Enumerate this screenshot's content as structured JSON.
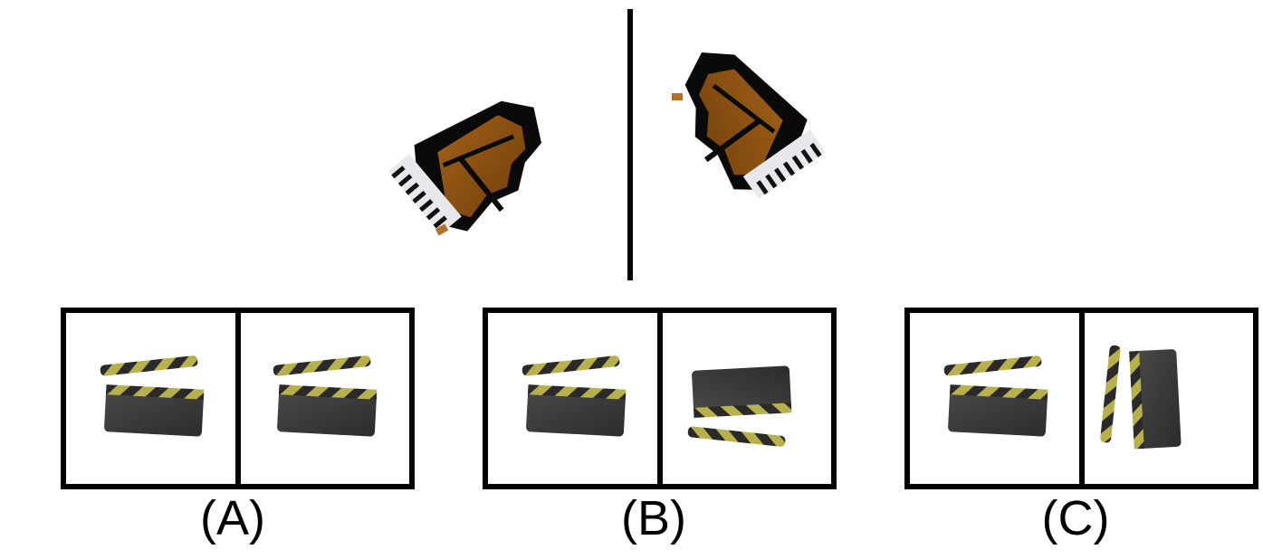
{
  "top_figure": {
    "left_object": "piano-icon",
    "right_object": "piano-icon",
    "colors": {
      "wood": "#8a4f0c",
      "frame": "#0a0a0a",
      "keys": "#e8e8ec"
    }
  },
  "options": [
    {
      "label": "(A)",
      "left_object": "clapperboard-icon",
      "right_object": "clapperboard-icon"
    },
    {
      "label": "(B)",
      "left_object": "clapperboard-icon",
      "right_object": "clapperboard-icon"
    },
    {
      "label": "(C)",
      "left_object": "clapperboard-icon",
      "right_object": "clapperboard-icon"
    }
  ],
  "colors": {
    "stripe_yellow": "#b8b04a",
    "slate": "#3a3a3a"
  }
}
